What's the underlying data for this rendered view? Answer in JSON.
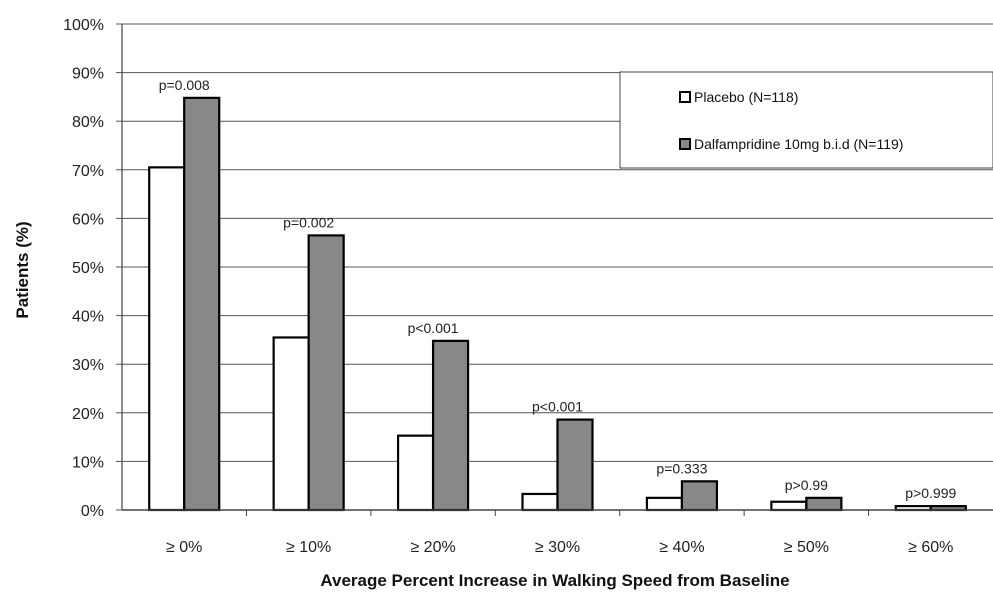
{
  "chart_data": {
    "type": "bar",
    "categories": [
      "≥ 0%",
      "≥ 10%",
      "≥ 20%",
      "≥ 30%",
      "≥ 40%",
      "≥ 50%",
      "≥ 60%"
    ],
    "series": [
      {
        "name": "Placebo (N=118)",
        "color": "#ffffff",
        "values": [
          70.5,
          35.5,
          15.3,
          3.3,
          2.5,
          1.7,
          0.8
        ]
      },
      {
        "name": "Dalfampridine 10mg b.i.d (N=119)",
        "color": "#888888",
        "values": [
          84.8,
          56.5,
          34.8,
          18.6,
          5.9,
          2.5,
          0.8
        ]
      }
    ],
    "annotations": [
      "p=0.008",
      "p=0.002",
      "p<0.001",
      "p<0.001",
      "p=0.333",
      "p>0.99",
      "p>0.999"
    ],
    "ylabel": "Patients (%)",
    "xlabel": "Average Percent Increase in Walking Speed from Baseline",
    "ylim": [
      0,
      100
    ],
    "yticks": [
      "0%",
      "10%",
      "20%",
      "30%",
      "40%",
      "50%",
      "60%",
      "70%",
      "80%",
      "90%",
      "100%"
    ],
    "grid": true,
    "legend_position": "top-right"
  }
}
